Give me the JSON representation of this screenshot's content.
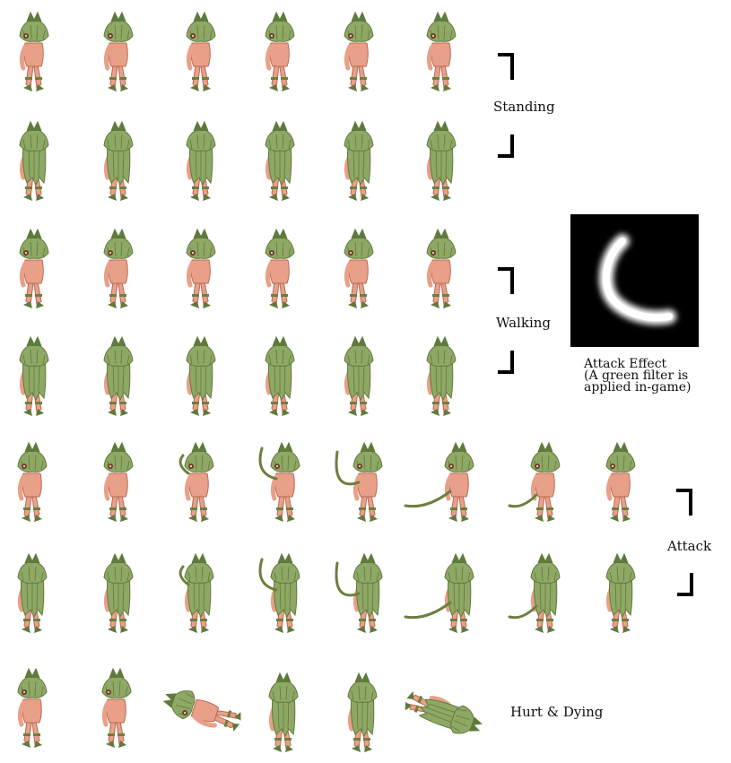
{
  "sheet": {
    "sections": [
      {
        "key": "standing",
        "label": "Standing",
        "rows": 2,
        "frames_per_row": 6
      },
      {
        "key": "walking",
        "label": "Walking",
        "rows": 2,
        "frames_per_row": 6
      },
      {
        "key": "attack",
        "label": "Attack",
        "rows": 2,
        "frames_per_row": 8
      },
      {
        "key": "hurt_dying",
        "label": "Hurt & Dying",
        "rows": 1,
        "frames_per_row": 6
      }
    ],
    "effect": {
      "title": "Attack Effect",
      "note_line1": "(A green filter is",
      "note_line2": "applied in-game)"
    },
    "colors": {
      "leaf": "#8fa865",
      "leaf_dark": "#5f7a3c",
      "skin": "#e8a088",
      "skin_dark": "#b86a55",
      "vine": "#6c7f3e",
      "background": "#ffffff",
      "effect_bg": "#000000"
    }
  }
}
